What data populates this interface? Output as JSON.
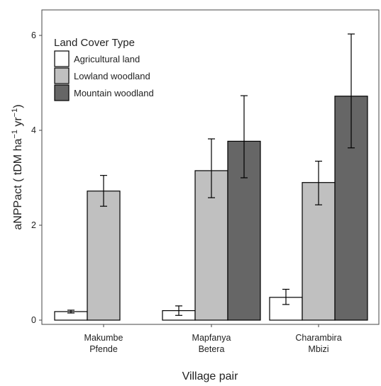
{
  "chart_data": {
    "type": "bar",
    "title": "",
    "xlabel": "Village pair",
    "ylabel_main": "aNPPact ( tDM ha",
    "ylabel_sup1": "−1",
    "ylabel_mid": " yr",
    "ylabel_sup2": "−1",
    "ylabel_end": ")",
    "ylim": [
      0,
      6.6
    ],
    "yticks": [
      0,
      2,
      4,
      6
    ],
    "grid": false,
    "legend_position": "top-left",
    "legend_title": "Land Cover Type",
    "categories": [
      {
        "line1": "Makumbe",
        "line2": "Pfende"
      },
      {
        "line1": "Mapfanya",
        "line2": "Betera"
      },
      {
        "line1": "Charambira",
        "line2": "Mbizi"
      }
    ],
    "series": [
      {
        "name": "Agricultural land",
        "color": "#ffffff",
        "values": [
          0.18,
          0.2,
          0.48
        ],
        "err_low": [
          0.15,
          0.1,
          0.33
        ],
        "err_high": [
          0.21,
          0.3,
          0.65
        ]
      },
      {
        "name": "Lowland woodland",
        "color": "#c0c0c0",
        "values": [
          2.72,
          3.15,
          2.9
        ],
        "err_low": [
          2.4,
          2.58,
          2.43
        ],
        "err_high": [
          3.05,
          3.82,
          3.35
        ]
      },
      {
        "name": "Mountain woodland",
        "color": "#666666",
        "values": [
          null,
          3.77,
          4.72
        ],
        "err_low": [
          null,
          3.0,
          3.63
        ],
        "err_high": [
          null,
          4.73,
          6.03
        ]
      }
    ]
  }
}
